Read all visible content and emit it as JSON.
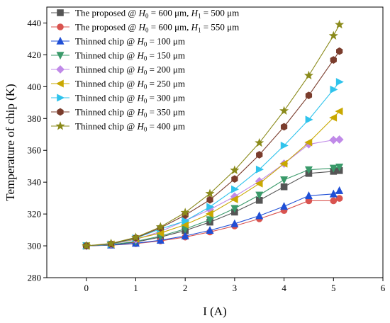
{
  "chart_data": {
    "type": "line",
    "title": "",
    "xlabel": "I (A)",
    "ylabel": "Temperature of chip (K)",
    "xlim": [
      -0.8,
      6
    ],
    "ylim": [
      280,
      450
    ],
    "xticks": [
      0,
      1,
      2,
      3,
      4,
      5,
      6
    ],
    "yticks": [
      280,
      300,
      320,
      340,
      360,
      380,
      400,
      420,
      440
    ],
    "grid": false,
    "legend_position": "top-left",
    "x": [
      0,
      0.5,
      1,
      1.5,
      2,
      2.5,
      3,
      3.5,
      4,
      4.5,
      5,
      5.12
    ],
    "series": [
      {
        "label_text": "The proposed @ ",
        "label_sub": "0",
        "label_tail": " = 600 μm, ",
        "label_h2": "1",
        "label_end": " = 500 μm",
        "marker": "square",
        "color": "#555555",
        "values": [
          300,
          300.6,
          302.4,
          305.5,
          309.6,
          314.9,
          321.2,
          328.6,
          337.1,
          345.5,
          346.8,
          347.3
        ]
      },
      {
        "label_text": "The proposed @ ",
        "label_sub": "0",
        "label_tail": " = 600 μm, ",
        "label_h2": "1",
        "label_end": " = 550 μm",
        "marker": "circle",
        "color": "#d9534f",
        "values": [
          300,
          300.4,
          301.4,
          303.1,
          305.5,
          308.7,
          312.5,
          317,
          322.2,
          328.3,
          328.3,
          329.8
        ]
      },
      {
        "label_text": "Thinned chip @ ",
        "label_sub": "0",
        "label_tail": " = 100 μm",
        "label_h2": "",
        "label_end": "",
        "marker": "triangle-up",
        "color": "#1f4fd6",
        "values": [
          300,
          300.5,
          301.6,
          303.5,
          306.2,
          309.7,
          313.9,
          318.9,
          324.8,
          331.5,
          332.6,
          334.7
        ]
      },
      {
        "label_text": "Thinned chip @ ",
        "label_sub": "0",
        "label_tail": " = 150 μm",
        "label_h2": "",
        "label_end": "",
        "marker": "triangle-down",
        "color": "#3a9a6a",
        "values": [
          300,
          300.7,
          302.8,
          306.1,
          310.6,
          316.4,
          323.5,
          331.9,
          341.5,
          347.8,
          348.8,
          349.5
        ]
      },
      {
        "label_text": "Thinned chip @ ",
        "label_sub": "0",
        "label_tail": " = 200 μm",
        "label_h2": "",
        "label_end": "",
        "marker": "diamond",
        "color": "#c08ae8",
        "values": [
          300,
          301,
          304,
          309,
          315.8,
          322.8,
          331,
          340.6,
          351.6,
          363.8,
          366.5,
          366.8
        ]
      },
      {
        "label_text": "Thinned chip @ ",
        "label_sub": "0",
        "label_tail": " = 250 μm",
        "label_h2": "",
        "label_end": "",
        "marker": "triangle-left",
        "color": "#c9a800",
        "values": [
          300,
          301,
          304.4,
          308,
          313.3,
          320.1,
          329.2,
          339.1,
          351.6,
          365,
          380.5,
          384.5
        ]
      },
      {
        "label_text": "Thinned chip @ ",
        "label_sub": "0",
        "label_tail": " = 300 μm",
        "label_h2": "",
        "label_end": "",
        "marker": "triangle-right",
        "color": "#2fc3ec",
        "values": [
          300,
          301,
          304.8,
          310.6,
          315.6,
          324.5,
          335.5,
          348,
          363,
          379.3,
          398.2,
          403
        ]
      },
      {
        "label_text": "Thinned chip @ ",
        "label_sub": "0",
        "label_tail": " = 350 μm",
        "label_h2": "",
        "label_end": "",
        "marker": "hexagon",
        "color": "#7a3c2c",
        "values": [
          300,
          301.2,
          305,
          311.3,
          319.3,
          328.9,
          342,
          357.2,
          374.8,
          394.5,
          416.8,
          422.3
        ]
      },
      {
        "label_text": "Thinned chip @ ",
        "label_sub": "0",
        "label_tail": " = 400 μm",
        "label_h2": "",
        "label_end": "",
        "marker": "star",
        "color": "#8a8a1a",
        "values": [
          300,
          301.5,
          305.3,
          311.9,
          320.9,
          332.8,
          347.5,
          364.7,
          384.8,
          407,
          432,
          439
        ]
      }
    ]
  }
}
